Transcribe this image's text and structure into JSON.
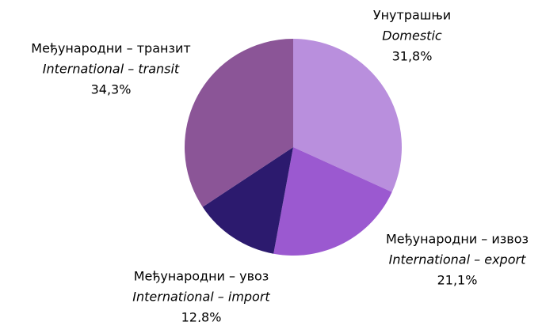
{
  "chart_data": {
    "type": "pie",
    "categories": [
      "Унутрашњи",
      "Међународни – извоз",
      "Међународни – увоз",
      "Међународни – транзит"
    ],
    "subcategories": [
      "Domestic",
      "International – export",
      "International – import",
      "International – transit"
    ],
    "values": [
      31.8,
      21.1,
      12.8,
      34.3
    ],
    "value_labels": [
      "31,8%",
      "21,1%",
      "12,8%",
      "34,3%"
    ],
    "colors": [
      "#b98fdd",
      "#9b59d0",
      "#2c1a6e",
      "#8b5597"
    ]
  }
}
